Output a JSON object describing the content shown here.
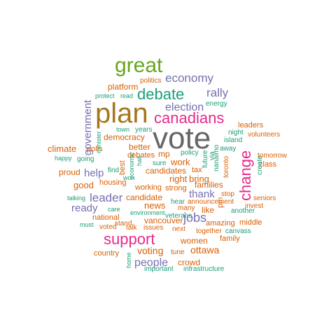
{
  "word_cloud": {
    "palette": {
      "green": "#66a61e",
      "brown": "#a6761d",
      "pink": "#e7298a",
      "purple": "#7570b3",
      "orange": "#d95f02",
      "teal": "#1b9e77",
      "gray": "#666666"
    },
    "words": [
      {
        "text": "vote",
        "color": "gray",
        "weight": 10
      },
      {
        "text": "plan",
        "color": "brown",
        "weight": 9
      },
      {
        "text": "great",
        "color": "green",
        "weight": 7
      },
      {
        "text": "canadians",
        "color": "pink",
        "weight": 6
      },
      {
        "text": "support",
        "color": "pink",
        "weight": 6
      },
      {
        "text": "debate",
        "color": "teal",
        "weight": 5
      },
      {
        "text": "change",
        "color": "pink",
        "weight": 5
      },
      {
        "text": "economy",
        "color": "purple",
        "weight": 4
      },
      {
        "text": "rally",
        "color": "purple",
        "weight": 4
      },
      {
        "text": "election",
        "color": "purple",
        "weight": 4
      },
      {
        "text": "jobs",
        "color": "purple",
        "weight": 4
      },
      {
        "text": "leader",
        "color": "purple",
        "weight": 4
      },
      {
        "text": "government",
        "color": "purple",
        "weight": 4
      },
      {
        "text": "help",
        "color": "purple",
        "weight": 3
      },
      {
        "text": "ready",
        "color": "purple",
        "weight": 3
      },
      {
        "text": "thank",
        "color": "purple",
        "weight": 3
      },
      {
        "text": "people",
        "color": "purple",
        "weight": 3
      },
      {
        "text": "voting",
        "color": "orange",
        "weight": 3
      },
      {
        "text": "ottawa",
        "color": "orange",
        "weight": 3
      },
      {
        "text": "platform",
        "color": "orange",
        "weight": 2
      },
      {
        "text": "politics",
        "color": "orange",
        "weight": 1
      },
      {
        "text": "protect",
        "color": "teal",
        "weight": 1
      },
      {
        "text": "read",
        "color": "teal",
        "weight": 1
      },
      {
        "text": "energy",
        "color": "teal",
        "weight": 1
      },
      {
        "text": "leaders",
        "color": "orange",
        "weight": 2
      },
      {
        "text": "night",
        "color": "teal",
        "weight": 1
      },
      {
        "text": "island",
        "color": "teal",
        "weight": 1
      },
      {
        "text": "volunteers",
        "color": "orange",
        "weight": 1
      },
      {
        "text": "town",
        "color": "teal",
        "weight": 1
      },
      {
        "text": "years",
        "color": "teal",
        "weight": 1
      },
      {
        "text": "democracy",
        "color": "orange",
        "weight": 2
      },
      {
        "text": "away",
        "color": "teal",
        "weight": 1
      },
      {
        "text": "tomorrow",
        "color": "orange",
        "weight": 1
      },
      {
        "text": "climate",
        "color": "orange",
        "weight": 2
      },
      {
        "text": "polls",
        "color": "orange",
        "weight": 2
      },
      {
        "text": "better",
        "color": "orange",
        "weight": 2
      },
      {
        "text": "minister",
        "color": "teal",
        "weight": 1
      },
      {
        "text": "happy",
        "color": "teal",
        "weight": 1
      },
      {
        "text": "going",
        "color": "teal",
        "weight": 1
      },
      {
        "text": "debates",
        "color": "orange",
        "weight": 1
      },
      {
        "text": "mp",
        "color": "orange",
        "weight": 2
      },
      {
        "text": "policy",
        "color": "teal",
        "weight": 1
      },
      {
        "text": "future",
        "color": "teal",
        "weight": 1
      },
      {
        "text": "via",
        "color": "teal",
        "weight": 1
      },
      {
        "text": "nanaimo",
        "color": "teal",
        "weight": 1
      },
      {
        "text": "toronto",
        "color": "orange",
        "weight": 1
      },
      {
        "text": "class",
        "color": "orange",
        "weight": 2
      },
      {
        "text": "sure",
        "color": "teal",
        "weight": 1
      },
      {
        "text": "work",
        "color": "orange",
        "weight": 3
      },
      {
        "text": "proud",
        "color": "orange",
        "weight": 2
      },
      {
        "text": "best",
        "color": "orange",
        "weight": 1
      },
      {
        "text": "find",
        "color": "teal",
        "weight": 1
      },
      {
        "text": "economic",
        "color": "teal",
        "weight": 1
      },
      {
        "text": "hall",
        "color": "teal",
        "weight": 1
      },
      {
        "text": "candidates",
        "color": "orange",
        "weight": 2
      },
      {
        "text": "tax",
        "color": "orange",
        "weight": 2
      },
      {
        "text": "right",
        "color": "orange",
        "weight": 3
      },
      {
        "text": "bring",
        "color": "orange",
        "weight": 3
      },
      {
        "text": "good",
        "color": "orange",
        "weight": 2
      },
      {
        "text": "housing",
        "color": "orange",
        "weight": 2
      },
      {
        "text": "working",
        "color": "orange",
        "weight": 1
      },
      {
        "text": "strong",
        "color": "orange",
        "weight": 1
      },
      {
        "text": "families",
        "color": "orange",
        "weight": 2
      },
      {
        "text": "create",
        "color": "teal",
        "weight": 1
      },
      {
        "text": "stop",
        "color": "orange",
        "weight": 1
      },
      {
        "text": "seniors",
        "color": "orange",
        "weight": 1
      },
      {
        "text": "talking",
        "color": "teal",
        "weight": 1
      },
      {
        "text": "candidate",
        "color": "orange",
        "weight": 2
      },
      {
        "text": "hear",
        "color": "teal",
        "weight": 1
      },
      {
        "text": "announcement",
        "color": "orange",
        "weight": 1
      },
      {
        "text": "news",
        "color": "orange",
        "weight": 3
      },
      {
        "text": "like",
        "color": "orange",
        "weight": 2
      },
      {
        "text": "many",
        "color": "orange",
        "weight": 1
      },
      {
        "text": "invest",
        "color": "orange",
        "weight": 1
      },
      {
        "text": "care",
        "color": "teal",
        "weight": 1
      },
      {
        "text": "environment",
        "color": "teal",
        "weight": 1
      },
      {
        "text": "won",
        "color": "teal",
        "weight": 1
      },
      {
        "text": "pm",
        "color": "orange",
        "weight": 2
      },
      {
        "text": "another",
        "color": "teal",
        "weight": 1
      },
      {
        "text": "national",
        "color": "orange",
        "weight": 2
      },
      {
        "text": "vancouver",
        "color": "orange",
        "weight": 2
      },
      {
        "text": "veterans",
        "color": "teal",
        "weight": 1
      },
      {
        "text": "amazing",
        "color": "orange",
        "weight": 2
      },
      {
        "text": "middle",
        "color": "orange",
        "weight": 2
      },
      {
        "text": "must",
        "color": "teal",
        "weight": 1
      },
      {
        "text": "voted",
        "color": "orange",
        "weight": 1
      },
      {
        "text": "talk",
        "color": "orange",
        "weight": 1
      },
      {
        "text": "issues",
        "color": "orange",
        "weight": 1
      },
      {
        "text": "next",
        "color": "orange",
        "weight": 1
      },
      {
        "text": "together",
        "color": "orange",
        "weight": 1
      },
      {
        "text": "canvass",
        "color": "teal",
        "weight": 1
      },
      {
        "text": "stand",
        "color": "orange",
        "weight": 1
      },
      {
        "text": "women",
        "color": "orange",
        "weight": 2
      },
      {
        "text": "family",
        "color": "orange",
        "weight": 2
      },
      {
        "text": "country",
        "color": "orange",
        "weight": 2
      },
      {
        "text": "tune",
        "color": "orange",
        "weight": 1
      },
      {
        "text": "home",
        "color": "teal",
        "weight": 1
      },
      {
        "text": "crowd",
        "color": "orange",
        "weight": 2
      },
      {
        "text": "important",
        "color": "teal",
        "weight": 1
      },
      {
        "text": "infrastructure",
        "color": "teal",
        "weight": 1
      }
    ]
  }
}
